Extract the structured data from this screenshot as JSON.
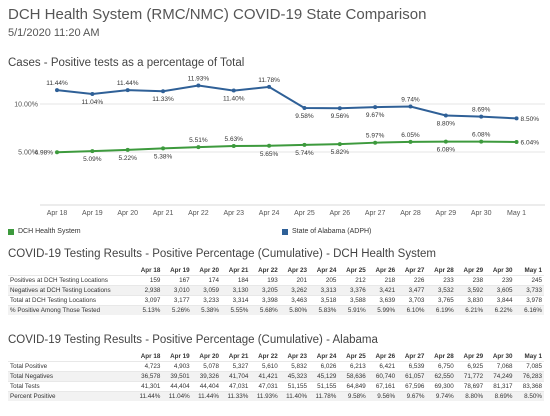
{
  "header": {
    "title": "DCH Health System (RMC/NMC) COVID-19 State Comparison",
    "datetime": "5/1/2020 11:20 AM"
  },
  "chart_data": {
    "type": "line",
    "title": "Cases - Positive tests as a percentage of Total",
    "categories": [
      "Apr 18",
      "Apr 19",
      "Apr 20",
      "Apr 21",
      "Apr 22",
      "Apr 23",
      "Apr 24",
      "Apr 25",
      "Apr 26",
      "Apr 27",
      "Apr 28",
      "Apr 29",
      "Apr 30",
      "May 1"
    ],
    "y_ticks": [
      "5.00%",
      "10.00%"
    ],
    "ylim": [
      0,
      12.5
    ],
    "grid": true,
    "legend_position": "bottom",
    "series": [
      {
        "name": "State of Alabama (ADPH)",
        "color": "#2f6097",
        "values": [
          11.44,
          11.04,
          11.44,
          11.33,
          11.93,
          11.4,
          11.78,
          9.58,
          9.56,
          9.67,
          9.74,
          8.8,
          8.69,
          8.5
        ],
        "labels": [
          "11.44%",
          "11.04%",
          "11.44%",
          "11.33%",
          "11.93%",
          "11.40%",
          "11.78%",
          "9.58%",
          "9.56%",
          "9.67%",
          "9.74%",
          "8.80%",
          "8.69%",
          "8.50%"
        ]
      },
      {
        "name": "DCH Health System",
        "color": "#3d9a3d",
        "values": [
          4.98,
          5.09,
          5.22,
          5.38,
          5.51,
          5.63,
          5.65,
          5.74,
          5.82,
          5.97,
          6.05,
          6.08,
          6.08,
          6.04
        ],
        "labels": [
          "4.98%",
          "5.09%",
          "5.22%",
          "5.38%",
          "5.51%",
          "5.63%",
          "5.65%",
          "5.74%",
          "5.82%",
          "5.97%",
          "6.05%",
          "6.08%",
          "6.08%",
          "6.04%"
        ]
      }
    ]
  },
  "tables": [
    {
      "title": "COVID-19 Testing Results - Positive Percentage (Cumulative) - DCH Health System",
      "columns": [
        "Apr 18",
        "Apr 19",
        "Apr 20",
        "Apr 21",
        "Apr 22",
        "Apr 23",
        "Apr 24",
        "Apr 25",
        "Apr 26",
        "Apr 27",
        "Apr 28",
        "Apr 29",
        "Apr 30",
        "May 1"
      ],
      "rows": [
        {
          "label": "Positives at DCH Testing Locations",
          "values": [
            "159",
            "167",
            "174",
            "184",
            "193",
            "201",
            "205",
            "212",
            "218",
            "226",
            "233",
            "238",
            "239",
            "245"
          ]
        },
        {
          "label": "Negatives at DCH Testing Locations",
          "values": [
            "2,938",
            "3,010",
            "3,059",
            "3,130",
            "3,205",
            "3,262",
            "3,313",
            "3,376",
            "3,421",
            "3,477",
            "3,532",
            "3,592",
            "3,605",
            "3,733"
          ]
        },
        {
          "label": "Total at DCH Testing Locations",
          "values": [
            "3,097",
            "3,177",
            "3,233",
            "3,314",
            "3,398",
            "3,463",
            "3,518",
            "3,588",
            "3,639",
            "3,703",
            "3,765",
            "3,830",
            "3,844",
            "3,978"
          ]
        },
        {
          "label": "% Positive Among Those Tested",
          "values": [
            "5.13%",
            "5.26%",
            "5.38%",
            "5.55%",
            "5.68%",
            "5.80%",
            "5.83%",
            "5.91%",
            "5.99%",
            "6.10%",
            "6.19%",
            "6.21%",
            "6.22%",
            "6.16%"
          ]
        }
      ]
    },
    {
      "title": "COVID-19 Testing Results - Positive Percentage (Cumulative) - Alabama",
      "columns": [
        "Apr 18",
        "Apr 19",
        "Apr 20",
        "Apr 21",
        "Apr 22",
        "Apr 23",
        "Apr 24",
        "Apr 25",
        "Apr 26",
        "Apr 27",
        "Apr 28",
        "Apr 29",
        "Apr 30",
        "May 1"
      ],
      "rows": [
        {
          "label": "Total Positive",
          "values": [
            "4,723",
            "4,903",
            "5,078",
            "5,327",
            "5,610",
            "5,832",
            "6,026",
            "6,213",
            "6,421",
            "6,539",
            "6,750",
            "6,925",
            "7,068",
            "7,085"
          ]
        },
        {
          "label": "Total Negatives",
          "values": [
            "36,578",
            "39,501",
            "39,326",
            "41,704",
            "41,421",
            "45,323",
            "45,129",
            "58,636",
            "60,740",
            "61,057",
            "62,550",
            "71,772",
            "74,249",
            "76,283"
          ]
        },
        {
          "label": "Total Tests",
          "values": [
            "41,301",
            "44,404",
            "44,404",
            "47,031",
            "47,031",
            "51,155",
            "51,155",
            "64,849",
            "67,161",
            "67,596",
            "69,300",
            "78,697",
            "81,317",
            "83,368"
          ]
        },
        {
          "label": "Percent Positive",
          "values": [
            "11.44%",
            "11.04%",
            "11.44%",
            "11.33%",
            "11.93%",
            "11.40%",
            "11.78%",
            "9.58%",
            "9.56%",
            "9.67%",
            "9.74%",
            "8.80%",
            "8.69%",
            "8.50%"
          ]
        }
      ]
    }
  ]
}
